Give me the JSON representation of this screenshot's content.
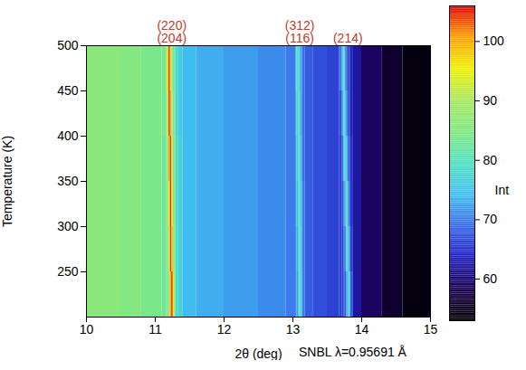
{
  "chart_data": {
    "type": "heatmap",
    "xlabel": "2θ (deg)",
    "ylabel": "Temperature (K)",
    "caption": "SNBL λ=0.95691 Å",
    "colorbar_label": "Int",
    "xlim": [
      10,
      15
    ],
    "xticks": [
      10,
      11,
      12,
      13,
      14,
      15
    ],
    "ylim": [
      200,
      500
    ],
    "yticks": [
      250,
      300,
      350,
      400,
      450,
      500
    ],
    "zlim": [
      53,
      106
    ],
    "zticks": [
      60,
      70,
      80,
      90,
      100
    ],
    "annotations": [
      {
        "x": 11.24,
        "lines": [
          "(220)",
          "(204)"
        ],
        "color": "#c0392b"
      },
      {
        "x": 13.1,
        "lines": [
          "(312)",
          "(116)"
        ],
        "color": "#c0392b"
      },
      {
        "x": 13.8,
        "lines": [
          "(214)"
        ],
        "color": "#c0392b"
      }
    ],
    "x_edges": [
      10,
      10.5,
      10.8,
      11.0,
      11.1,
      11.16,
      11.18,
      11.2,
      11.22,
      11.24,
      11.26,
      11.28,
      11.3,
      11.34,
      11.4,
      11.6,
      12.0,
      12.5,
      12.9,
      13.04,
      13.06,
      13.08,
      13.1,
      13.12,
      13.14,
      13.18,
      13.3,
      13.5,
      13.68,
      13.72,
      13.74,
      13.76,
      13.78,
      13.8,
      13.82,
      13.84,
      13.88,
      14.0,
      14.3,
      14.6,
      15.0
    ],
    "y_edges": [
      200,
      250,
      300,
      350,
      400,
      450,
      500
    ],
    "values": [
      [
        86,
        85,
        84,
        84,
        83,
        83,
        84,
        88,
        100,
        105,
        96,
        84,
        79,
        77,
        74,
        73,
        72,
        71,
        70,
        71,
        72,
        75,
        80,
        76,
        70,
        68,
        67,
        66,
        66,
        66,
        67,
        68,
        72,
        78,
        76,
        68,
        62,
        59,
        56,
        54
      ],
      [
        86,
        85,
        84,
        84,
        83,
        83,
        85,
        92,
        104,
        100,
        88,
        83,
        79,
        77,
        74,
        73,
        72,
        71,
        70,
        71,
        73,
        77,
        80,
        75,
        70,
        68,
        67,
        66,
        66,
        66,
        68,
        71,
        77,
        78,
        71,
        66,
        62,
        59,
        56,
        54
      ],
      [
        86,
        85,
        84,
        84,
        83,
        84,
        86,
        96,
        105,
        96,
        86,
        82,
        79,
        77,
        74,
        73,
        72,
        71,
        70,
        72,
        74,
        79,
        79,
        74,
        70,
        68,
        67,
        66,
        66,
        67,
        70,
        76,
        79,
        73,
        68,
        65,
        62,
        59,
        56,
        54
      ],
      [
        86,
        85,
        84,
        84,
        83,
        84,
        88,
        101,
        104,
        92,
        85,
        82,
        79,
        77,
        74,
        73,
        72,
        71,
        70,
        72,
        76,
        80,
        77,
        73,
        69,
        68,
        67,
        66,
        66,
        69,
        75,
        79,
        74,
        69,
        66,
        65,
        62,
        59,
        56,
        54
      ],
      [
        86,
        85,
        84,
        84,
        84,
        85,
        92,
        105,
        100,
        88,
        84,
        82,
        78,
        76,
        74,
        73,
        72,
        71,
        70,
        73,
        78,
        80,
        75,
        72,
        69,
        68,
        67,
        66,
        67,
        73,
        79,
        76,
        70,
        67,
        65,
        64,
        62,
        59,
        56,
        54
      ],
      [
        86,
        85,
        84,
        84,
        84,
        86,
        97,
        105,
        96,
        86,
        83,
        81,
        78,
        76,
        74,
        73,
        72,
        71,
        70,
        74,
        80,
        78,
        74,
        72,
        69,
        68,
        67,
        66,
        70,
        77,
        79,
        72,
        68,
        66,
        65,
        64,
        62,
        59,
        56,
        54
      ]
    ]
  }
}
